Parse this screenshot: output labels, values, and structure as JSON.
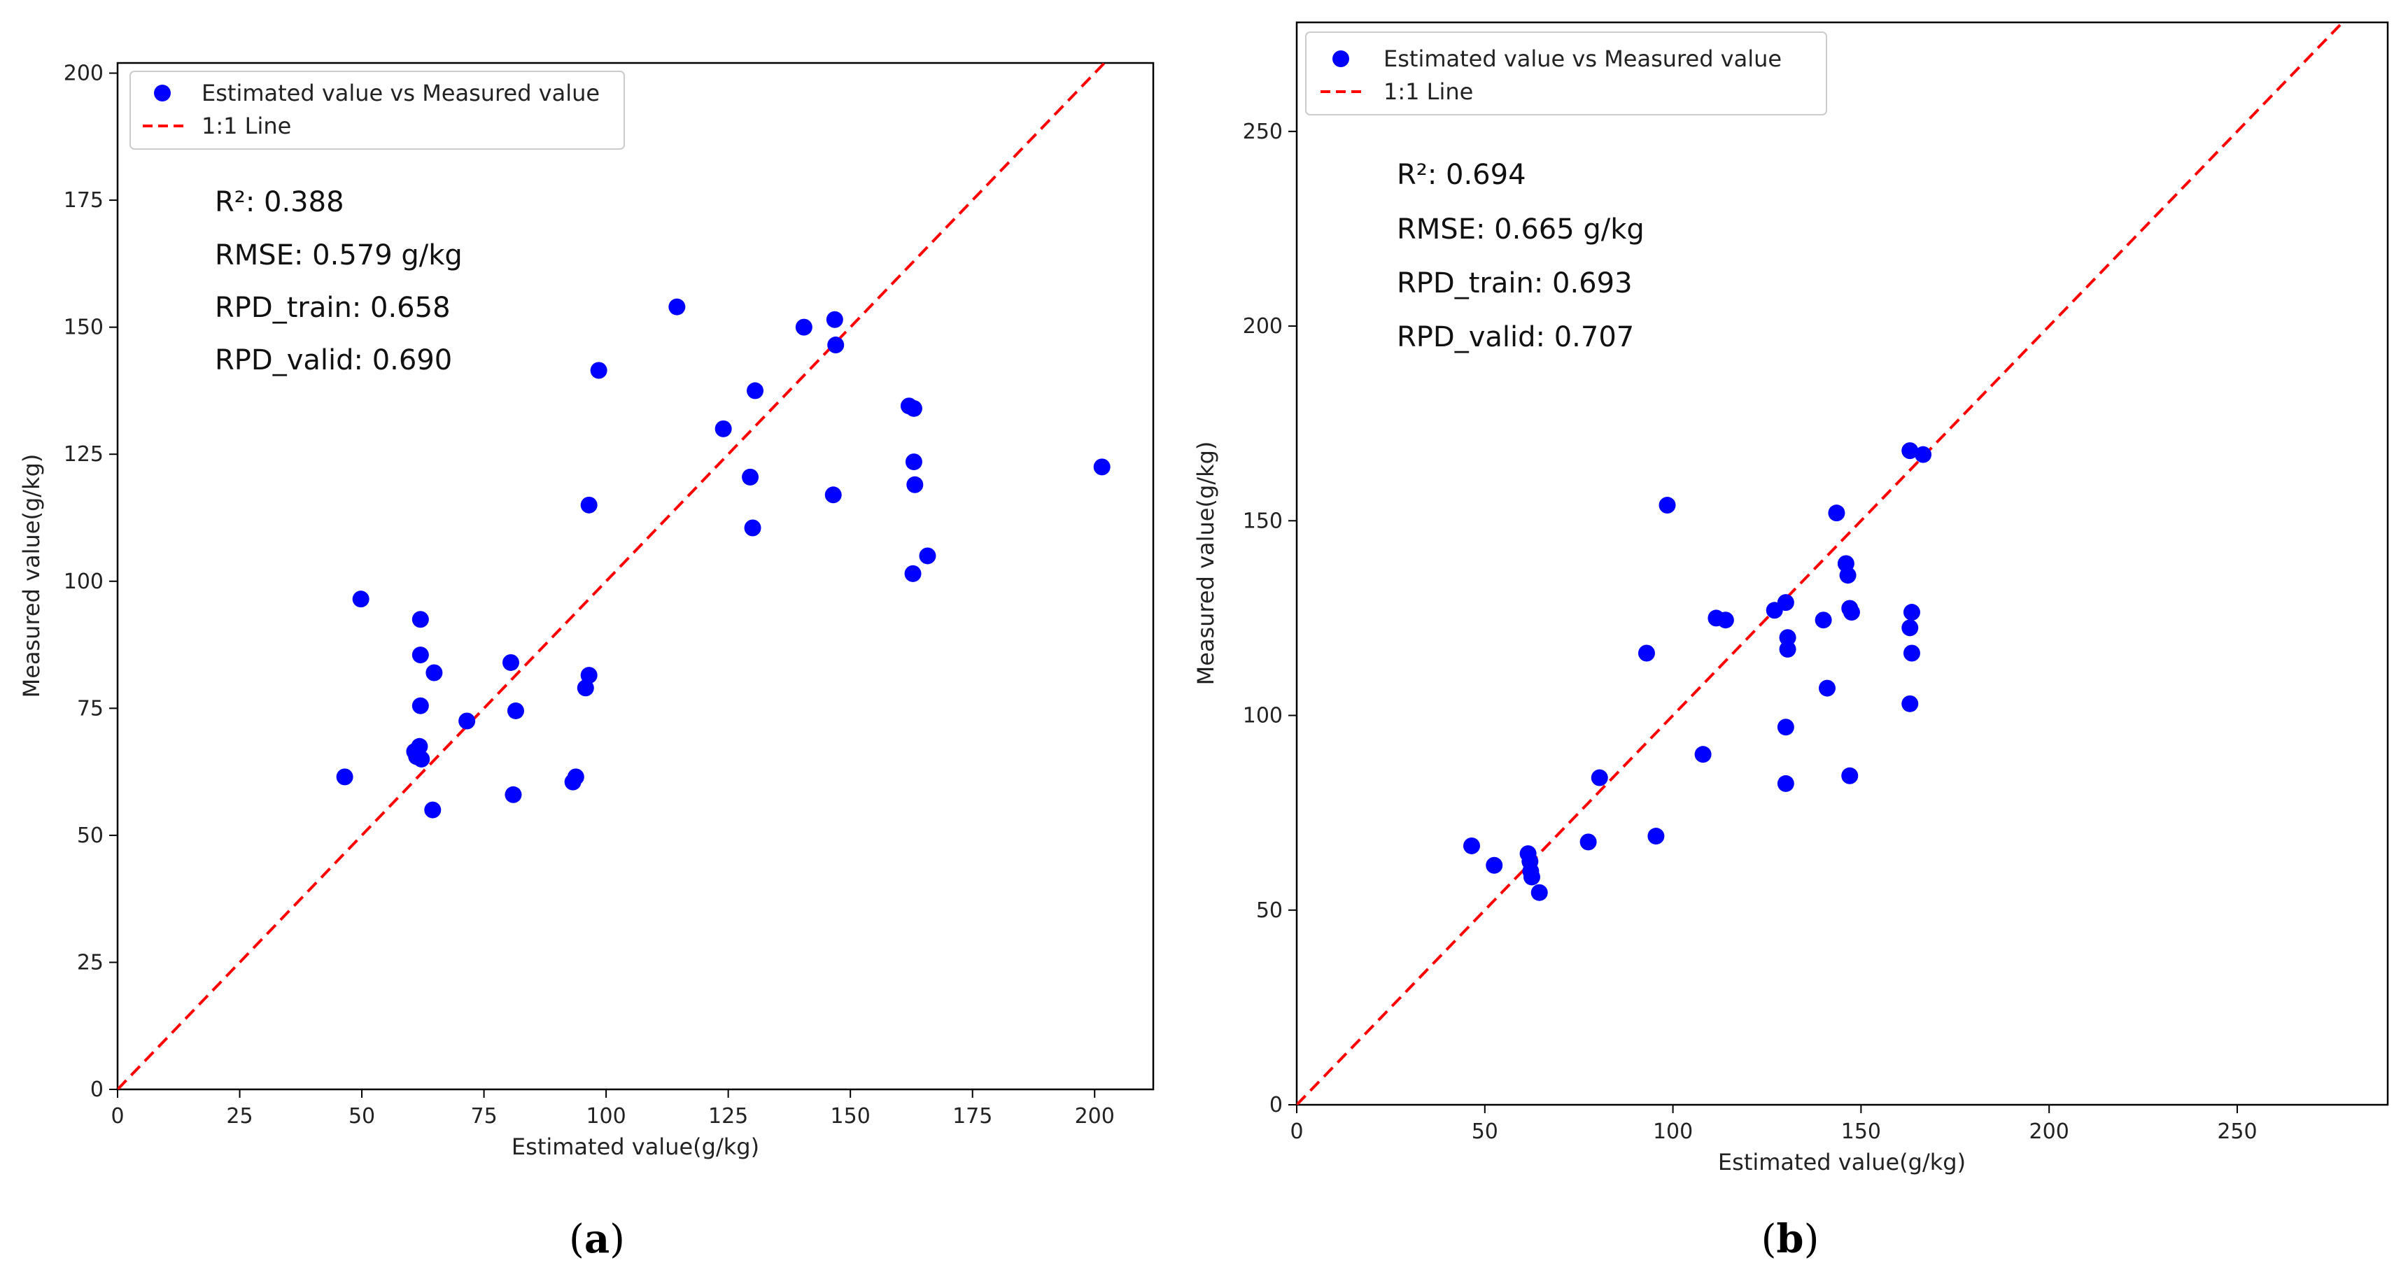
{
  "chart_data": [
    {
      "type": "scatter",
      "panel_label": "a",
      "xlabel": "Estimated value(g/kg)",
      "ylabel": "Measured value(g/kg)",
      "xlim": [
        0,
        212
      ],
      "ylim": [
        0,
        202
      ],
      "xticks": [
        0,
        25,
        50,
        75,
        100,
        125,
        150,
        175,
        200
      ],
      "yticks": [
        0,
        25,
        50,
        75,
        100,
        125,
        150,
        175,
        200
      ],
      "legend": {
        "position": "top-left",
        "scatter_label": "Estimated value vs Measured value",
        "line_label": "1:1 Line"
      },
      "stats": [
        "R²: 0.388",
        "RMSE: 0.579 g/kg",
        "RPD_train: 0.658",
        "RPD_valid: 0.690"
      ],
      "series": [
        {
          "name": "Estimated value vs Measured value",
          "color": "#0000ff",
          "points": [
            [
              46.5,
              61.5
            ],
            [
              49.8,
              96.5
            ],
            [
              60.8,
              66.5
            ],
            [
              61.2,
              65.5
            ],
            [
              61.8,
              67.5
            ],
            [
              62.2,
              65.0
            ],
            [
              62.0,
              92.5
            ],
            [
              62.0,
              85.5
            ],
            [
              62.0,
              75.5
            ],
            [
              64.5,
              55.0
            ],
            [
              64.8,
              82.0
            ],
            [
              71.5,
              72.5
            ],
            [
              80.5,
              84.0
            ],
            [
              81.0,
              58.0
            ],
            [
              81.5,
              74.5
            ],
            [
              93.2,
              60.5
            ],
            [
              93.8,
              61.5
            ],
            [
              95.8,
              79.0
            ],
            [
              96.5,
              81.5
            ],
            [
              96.5,
              115.0
            ],
            [
              98.5,
              141.5
            ],
            [
              114.5,
              154.0
            ],
            [
              124.0,
              130.0
            ],
            [
              129.5,
              120.5
            ],
            [
              130.0,
              110.5
            ],
            [
              130.5,
              137.5
            ],
            [
              140.5,
              150.0
            ],
            [
              146.5,
              117.0
            ],
            [
              146.8,
              151.5
            ],
            [
              147.0,
              146.5
            ],
            [
              162.0,
              134.5
            ],
            [
              163.0,
              134.0
            ],
            [
              163.0,
              123.5
            ],
            [
              163.2,
              119.0
            ],
            [
              162.8,
              101.5
            ],
            [
              165.8,
              105.0
            ],
            [
              201.5,
              122.5
            ]
          ]
        },
        {
          "name": "1:1 Line",
          "color": "#ff0000",
          "style": "dashed",
          "x": [
            0,
            212
          ],
          "y": [
            0,
            212
          ]
        }
      ]
    },
    {
      "type": "scatter",
      "panel_label": "b",
      "xlabel": "Estimated value(g/kg)",
      "ylabel": "Measured value(g/kg)",
      "xlim": [
        0,
        290
      ],
      "ylim": [
        0,
        278
      ],
      "xticks": [
        0,
        50,
        100,
        150,
        200,
        250
      ],
      "yticks": [
        0,
        50,
        100,
        150,
        200,
        250
      ],
      "legend": {
        "position": "top-left",
        "scatter_label": "Estimated value vs Measured value",
        "line_label": "1:1 Line"
      },
      "stats": [
        "R²: 0.694",
        "RMSE: 0.665 g/kg",
        "RPD_train: 0.693",
        "RPD_valid: 0.707"
      ],
      "series": [
        {
          "name": "Estimated value vs Measured value",
          "color": "#0000ff",
          "points": [
            [
              46.5,
              66.5
            ],
            [
              52.5,
              61.5
            ],
            [
              61.5,
              64.5
            ],
            [
              62.0,
              62.5
            ],
            [
              62.2,
              60.0
            ],
            [
              62.5,
              58.5
            ],
            [
              64.5,
              54.5
            ],
            [
              77.5,
              67.5
            ],
            [
              80.5,
              84.0
            ],
            [
              93.0,
              116.0
            ],
            [
              95.5,
              69.0
            ],
            [
              98.5,
              154.0
            ],
            [
              108.0,
              90.0
            ],
            [
              111.5,
              125.0
            ],
            [
              114.0,
              124.5
            ],
            [
              127.0,
              127.0
            ],
            [
              130.0,
              129.0
            ],
            [
              130.0,
              97.0
            ],
            [
              130.0,
              82.5
            ],
            [
              130.5,
              120.0
            ],
            [
              130.5,
              117.0
            ],
            [
              140.0,
              124.5
            ],
            [
              141.0,
              107.0
            ],
            [
              143.5,
              152.0
            ],
            [
              146.0,
              139.0
            ],
            [
              146.5,
              136.0
            ],
            [
              147.0,
              127.5
            ],
            [
              147.5,
              126.5
            ],
            [
              147.0,
              84.5
            ],
            [
              163.0,
              168.0
            ],
            [
              166.5,
              167.0
            ],
            [
              163.5,
              126.5
            ],
            [
              163.0,
              122.5
            ],
            [
              163.5,
              116.0
            ],
            [
              163.0,
              103.0
            ]
          ]
        },
        {
          "name": "1:1 Line",
          "color": "#ff0000",
          "style": "dashed",
          "x": [
            0,
            290
          ],
          "y": [
            0,
            290
          ]
        }
      ]
    }
  ]
}
